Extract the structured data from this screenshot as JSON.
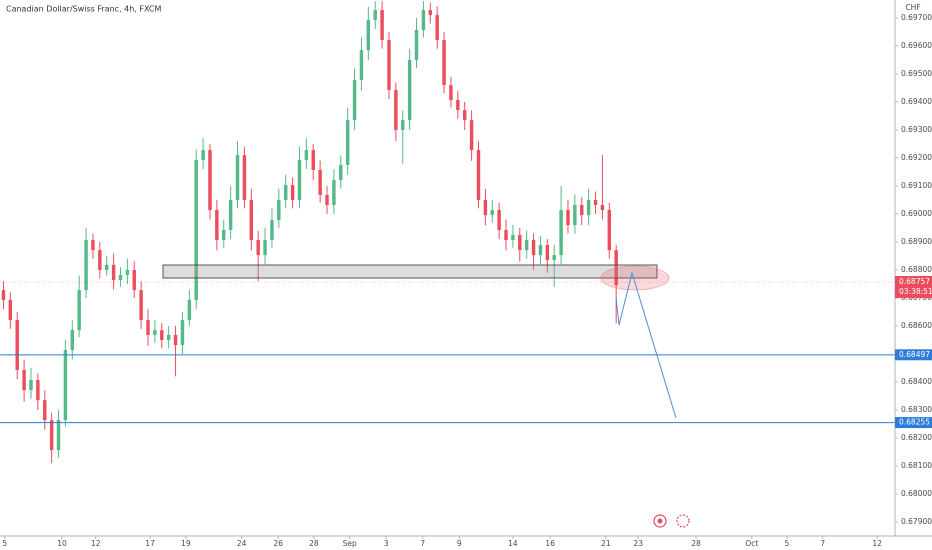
{
  "chart_data": {
    "type": "candlestick",
    "title": "Canadian Dollar/Swiss Franc, 4h, FXCM",
    "currency": "CHF",
    "up_color": "#53b987",
    "down_color": "#eb4d5c",
    "open": [
      0.68728,
      0.68693,
      0.68621,
      0.68443,
      0.68371,
      0.68407,
      0.68335,
      0.68264,
      0.68157,
      0.68264,
      0.68514,
      0.68585,
      0.68728,
      0.68907,
      0.68871,
      0.688,
      0.68818,
      0.68764,
      0.68782,
      0.688,
      0.68728,
      0.68621,
      0.68568,
      0.68585,
      0.6855,
      0.68568,
      0.68532,
      0.68621,
      0.68693,
      0.69193,
      0.69228,
      0.69014,
      0.68907,
      0.68943,
      0.6905,
      0.6921,
      0.6905,
      0.68907,
      0.68853,
      0.68907,
      0.68978,
      0.6905,
      0.69103,
      0.6905,
      0.69193,
      0.69228,
      0.69157,
      0.69068,
      0.69032,
      0.69121,
      0.69175,
      0.69335,
      0.69478,
      0.69585,
      0.69693,
      0.69728,
      0.69621,
      0.69443,
      0.693,
      0.69335,
      0.6955,
      0.69657,
      0.69728,
      0.6971,
      0.69621,
      0.6946,
      0.69407,
      0.69371,
      0.69335,
      0.69228,
      0.6905,
      0.68996,
      0.69014,
      0.68943,
      0.68907,
      0.68925,
      0.68871,
      0.68907,
      0.68853,
      0.68889,
      0.68835,
      0.68853,
      0.69014,
      0.6896,
      0.69032,
      0.68996,
      0.6905,
      0.69032,
      0.69014,
      0.68871
    ],
    "high": [
      0.6876,
      0.6872,
      0.6865,
      0.6848,
      0.6845,
      0.6843,
      0.6837,
      0.6829,
      0.683,
      0.6855,
      0.6862,
      0.6878,
      0.6895,
      0.6893,
      0.689,
      0.6885,
      0.6886,
      0.6881,
      0.6884,
      0.6883,
      0.6876,
      0.6866,
      0.6862,
      0.6861,
      0.686,
      0.686,
      0.6865,
      0.6873,
      0.6923,
      0.6927,
      0.6925,
      0.6905,
      0.6898,
      0.691,
      0.6926,
      0.6924,
      0.6909,
      0.6894,
      0.6895,
      0.6902,
      0.6909,
      0.6914,
      0.6913,
      0.6924,
      0.6927,
      0.6925,
      0.6919,
      0.691,
      0.6916,
      0.6921,
      0.6938,
      0.6952,
      0.6963,
      0.6974,
      0.6976,
      0.6976,
      0.6965,
      0.6947,
      0.6937,
      0.6959,
      0.697,
      0.6976,
      0.69755,
      0.6974,
      0.6965,
      0.6949,
      0.6944,
      0.694,
      0.6937,
      0.6926,
      0.6909,
      0.6905,
      0.6904,
      0.6898,
      0.6896,
      0.6895,
      0.6894,
      0.6893,
      0.6892,
      0.6891,
      0.6889,
      0.691,
      0.6905,
      0.6907,
      0.6906,
      0.6909,
      0.6908,
      0.6921,
      0.6904,
      0.6889
    ],
    "low": [
      0.6866,
      0.6859,
      0.6841,
      0.6833,
      0.6834,
      0.683,
      0.6823,
      0.6811,
      0.6813,
      0.6824,
      0.6848,
      0.6856,
      0.687,
      0.6884,
      0.6877,
      0.6878,
      0.6873,
      0.6874,
      0.6875,
      0.687,
      0.6859,
      0.6853,
      0.6854,
      0.6852,
      0.6852,
      0.6842,
      0.685,
      0.686,
      0.6866,
      0.6916,
      0.6898,
      0.6887,
      0.6888,
      0.6891,
      0.6902,
      0.6902,
      0.6887,
      0.6876,
      0.6882,
      0.6888,
      0.6895,
      0.6902,
      0.6902,
      0.6902,
      0.6916,
      0.6912,
      0.6904,
      0.69,
      0.69,
      0.6909,
      0.6914,
      0.693,
      0.6944,
      0.6955,
      0.6966,
      0.6959,
      0.6941,
      0.6926,
      0.6918,
      0.693,
      0.6952,
      0.6963,
      0.6968,
      0.6959,
      0.6943,
      0.6938,
      0.6934,
      0.693,
      0.6919,
      0.6902,
      0.6896,
      0.6897,
      0.6891,
      0.6887,
      0.6888,
      0.6883,
      0.6884,
      0.688,
      0.6882,
      0.6879,
      0.6874,
      0.6882,
      0.6893,
      0.6893,
      0.6896,
      0.6896,
      0.69,
      0.6898,
      0.6884,
      0.6861
    ],
    "close": [
      0.68693,
      0.68621,
      0.68443,
      0.68371,
      0.68407,
      0.68335,
      0.68264,
      0.68157,
      0.68264,
      0.68514,
      0.68585,
      0.68728,
      0.68907,
      0.68871,
      0.688,
      0.68818,
      0.68764,
      0.68782,
      0.688,
      0.68728,
      0.68621,
      0.68568,
      0.68585,
      0.6855,
      0.68568,
      0.68532,
      0.68621,
      0.68693,
      0.69193,
      0.69228,
      0.69014,
      0.68907,
      0.68943,
      0.6905,
      0.6921,
      0.6905,
      0.68907,
      0.68853,
      0.68907,
      0.68978,
      0.6905,
      0.69103,
      0.6905,
      0.69193,
      0.69228,
      0.69157,
      0.69068,
      0.69032,
      0.69121,
      0.69175,
      0.69335,
      0.69478,
      0.69585,
      0.69693,
      0.69728,
      0.69621,
      0.69443,
      0.693,
      0.69335,
      0.6955,
      0.69657,
      0.69728,
      0.6971,
      0.69621,
      0.6946,
      0.69407,
      0.69371,
      0.69335,
      0.69228,
      0.6905,
      0.68996,
      0.69014,
      0.68943,
      0.68907,
      0.68925,
      0.68871,
      0.68907,
      0.68853,
      0.68889,
      0.68835,
      0.68853,
      0.69014,
      0.6896,
      0.69032,
      0.68996,
      0.6905,
      0.69032,
      0.69014,
      0.68871,
      0.68746
    ],
    "xlim": [
      0,
      130
    ],
    "xticks": [
      {
        "value": 0.7,
        "label": "5"
      },
      {
        "value": 9.0,
        "label": "10"
      },
      {
        "value": 13.9,
        "label": "12"
      },
      {
        "value": 21.8,
        "label": "17"
      },
      {
        "value": 27.0,
        "label": "19"
      },
      {
        "value": 35.1,
        "label": "24"
      },
      {
        "value": 40.4,
        "label": "26"
      },
      {
        "value": 45.6,
        "label": "28"
      },
      {
        "value": 50.8,
        "label": "Sep"
      },
      {
        "value": 56.1,
        "label": "3"
      },
      {
        "value": 61.4,
        "label": "7"
      },
      {
        "value": 66.7,
        "label": "9"
      },
      {
        "value": 74.5,
        "label": "14"
      },
      {
        "value": 79.9,
        "label": "16"
      },
      {
        "value": 88.0,
        "label": "21"
      },
      {
        "value": 92.7,
        "label": "23"
      },
      {
        "value": 101.1,
        "label": "28"
      },
      {
        "value": 109.2,
        "label": "Oct"
      },
      {
        "value": 114.3,
        "label": "5"
      },
      {
        "value": 119.5,
        "label": "7"
      },
      {
        "value": 127.4,
        "label": "12"
      }
    ],
    "ylim": [
      0.6785,
      0.69764
    ],
    "yticks": [
      {
        "value": 0.679,
        "label": "0.67900"
      },
      {
        "value": 0.68,
        "label": "0.68000"
      },
      {
        "value": 0.681,
        "label": "0.68100"
      },
      {
        "value": 0.682,
        "label": "0.68200"
      },
      {
        "value": 0.683,
        "label": "0.68300"
      },
      {
        "value": 0.684,
        "label": "0.68400"
      },
      {
        "value": 0.685,
        "label": "0.68500"
      },
      {
        "value": 0.686,
        "label": "0.68600"
      },
      {
        "value": 0.687,
        "label": "0.68700"
      },
      {
        "value": 0.688,
        "label": "0.68800"
      },
      {
        "value": 0.689,
        "label": "0.68900"
      },
      {
        "value": 0.69,
        "label": "0.69000"
      },
      {
        "value": 0.691,
        "label": "0.69100"
      },
      {
        "value": 0.692,
        "label": "0.69200"
      },
      {
        "value": 0.693,
        "label": "0.69300"
      },
      {
        "value": 0.694,
        "label": "0.69400"
      },
      {
        "value": 0.695,
        "label": "0.69500"
      },
      {
        "value": 0.696,
        "label": "0.69600"
      },
      {
        "value": 0.697,
        "label": "0.69700"
      }
    ],
    "grid": false,
    "price_lines": [
      {
        "value": 0.68497,
        "label": "0.68497",
        "color": "#2f7bd8"
      },
      {
        "value": 0.68255,
        "label": "0.68255",
        "color": "#2f7bd8"
      }
    ],
    "current_price": {
      "value": 0.68757,
      "label": "0.68757",
      "countdown": "03:38:51",
      "color": "#eb4d5c"
    }
  }
}
